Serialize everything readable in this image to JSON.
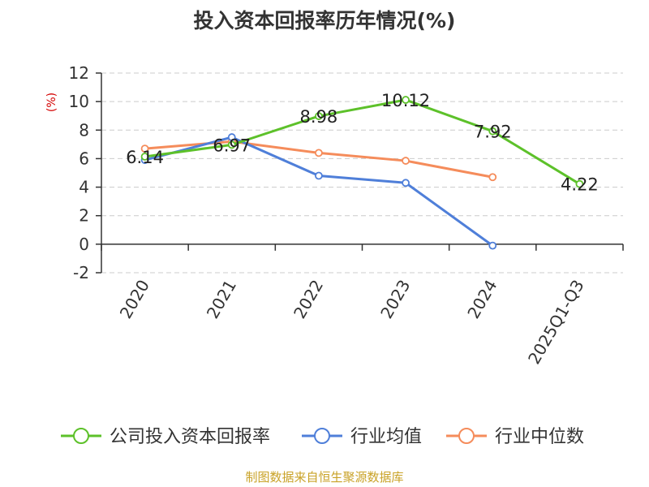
{
  "page": {
    "title": "投入资本回报率历年情况(%)",
    "source": "制图数据来自恒生聚源数据库"
  },
  "chart_data": {
    "type": "line",
    "title": "投入资本回报率历年情况(%)",
    "ylabel": "(%)",
    "xlabel": "",
    "categories": [
      "2020",
      "2021",
      "2022",
      "2023",
      "2024",
      "2025Q1-Q3"
    ],
    "ylim": [
      -2,
      12
    ],
    "yticks": [
      -2,
      0,
      2,
      4,
      6,
      8,
      10,
      12
    ],
    "grid": true,
    "legend_position": "bottom",
    "series": [
      {
        "name": "公司投入资本回报率",
        "color": "#5dc12a",
        "values": [
          6.14,
          6.97,
          8.98,
          10.12,
          7.92,
          4.22
        ],
        "labels": [
          "6.14",
          "6.97",
          "8.98",
          "10.12",
          "7.92",
          "4.22"
        ]
      },
      {
        "name": "行业均值",
        "color": "#4f7fd9",
        "values": [
          5.9,
          7.5,
          4.8,
          4.3,
          -0.1,
          null
        ]
      },
      {
        "name": "行业中位数",
        "color": "#f58c5b",
        "values": [
          6.7,
          7.2,
          6.4,
          5.85,
          4.7,
          null
        ]
      }
    ]
  }
}
